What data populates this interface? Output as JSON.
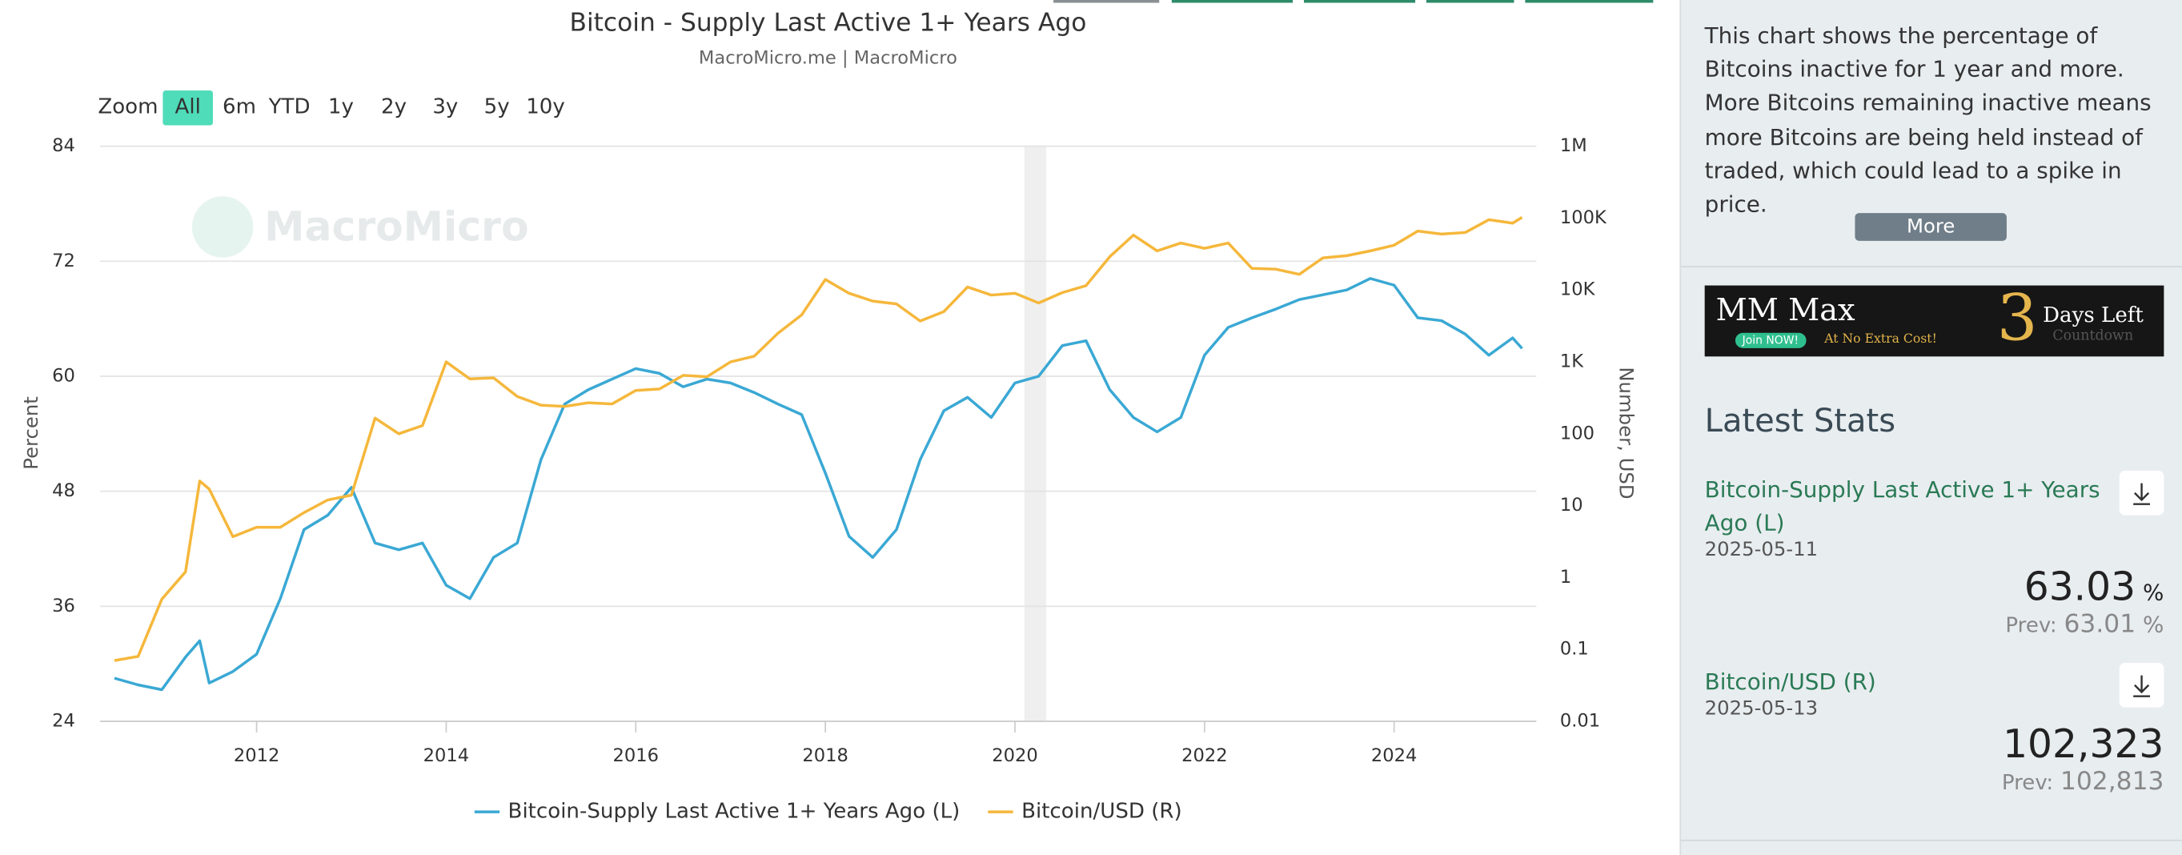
{
  "chart_data": {
    "type": "line",
    "title": "Bitcoin - Supply Last Active 1+ Years Ago",
    "subtitle": "MacroMicro.me | MacroMicro",
    "watermark": "MacroMicro",
    "y_label": "Percent",
    "y2_label": "Number, USD",
    "xlim": [
      2010.35,
      2025.5
    ],
    "xticks": [
      2012,
      2014,
      2016,
      2018,
      2020,
      2022,
      2024
    ],
    "ylim": [
      24,
      84
    ],
    "yticks": [
      24,
      36,
      48,
      60,
      72,
      84
    ],
    "y2lim": [
      0.01,
      1000000
    ],
    "y2_scale": "log",
    "y2ticks": [
      0.01,
      0.1,
      1,
      10,
      100,
      {
        "value": 1000,
        "label": "1K"
      },
      {
        "value": 10000,
        "label": "10K"
      },
      {
        "value": 100000,
        "label": "100K"
      },
      {
        "value": 1000000,
        "label": "1M"
      }
    ],
    "grid": true,
    "shaded_ranges": [
      [
        2020.1,
        2020.33
      ]
    ],
    "x": [
      2010.5,
      2010.75,
      2011.0,
      2011.25,
      2011.4,
      2011.5,
      2011.75,
      2012.0,
      2012.25,
      2012.5,
      2012.75,
      2013.0,
      2013.25,
      2013.5,
      2013.75,
      2014.0,
      2014.25,
      2014.5,
      2014.75,
      2015.0,
      2015.25,
      2015.5,
      2015.75,
      2016.0,
      2016.25,
      2016.5,
      2016.75,
      2017.0,
      2017.25,
      2017.5,
      2017.75,
      2018.0,
      2018.25,
      2018.5,
      2018.75,
      2019.0,
      2019.25,
      2019.5,
      2019.75,
      2020.0,
      2020.25,
      2020.5,
      2020.75,
      2021.0,
      2021.25,
      2021.5,
      2021.75,
      2022.0,
      2022.25,
      2022.5,
      2022.75,
      2023.0,
      2023.25,
      2023.5,
      2023.75,
      2024.0,
      2024.25,
      2024.5,
      2024.75,
      2025.0,
      2025.25,
      2025.35
    ],
    "series": [
      {
        "name": "Bitcoin-Supply Last Active 1+ Years Ago (L)",
        "color": "#3aa8d4",
        "axis": "y",
        "values": [
          28.5,
          27.8,
          27.3,
          30.7,
          32.4,
          28,
          29.2,
          31,
          36.8,
          44,
          45.5,
          48.4,
          42.6,
          41.9,
          42.6,
          38.2,
          36.8,
          41.1,
          42.6,
          51.3,
          57.1,
          58.6,
          59.7,
          60.8,
          60.3,
          58.9,
          59.7,
          59.3,
          58.3,
          57.1,
          56,
          49.9,
          43.3,
          41.1,
          44,
          51.3,
          56.4,
          57.8,
          55.7,
          59.3,
          60,
          63.2,
          63.7,
          58.6,
          55.7,
          54.2,
          55.7,
          62.2,
          65.1,
          66.1,
          67,
          68,
          68.5,
          69,
          70.2,
          69.5,
          66.1,
          65.8,
          64.4,
          62.2,
          64,
          62.9
        ]
      },
      {
        "name": "Bitcoin/USD (R)",
        "color": "#f5b73b",
        "axis": "y2",
        "values": [
          0.07,
          0.08,
          0.5,
          1.2,
          22,
          17,
          3.7,
          5,
          5,
          8,
          12,
          14,
          165,
          100,
          130,
          1000,
          580,
          600,
          330,
          250,
          240,
          270,
          260,
          400,
          420,
          650,
          620,
          1000,
          1200,
          2500,
          4500,
          14000,
          9000,
          7000,
          6400,
          3700,
          5000,
          11000,
          8500,
          9000,
          6600,
          9200,
          11500,
          29000,
          58000,
          35000,
          45000,
          38000,
          45000,
          20000,
          19500,
          16500,
          28000,
          30000,
          35000,
          42000,
          66000,
          60000,
          63000,
          95000,
          85000,
          102323
        ]
      }
    ]
  },
  "range_selector": {
    "label": "Zoom",
    "buttons": [
      "All",
      "6m",
      "YTD",
      "1y",
      "2y",
      "3y",
      "5y",
      "10y"
    ],
    "active": 0
  },
  "sidebar": {
    "description": "This chart shows the percentage of Bitcoins inactive for 1 year and more. More Bitcoins remaining inactive means more Bitcoins are being held instead of traded, which could lead to a spike in price.",
    "more_button": "More",
    "ad": {
      "brand": "MM Max",
      "cta": "Join NOW!",
      "tagline": "At No Extra Cost!",
      "count": "3",
      "days": "Days Left",
      "caption": "Countdown"
    },
    "stats_title": "Latest Stats",
    "stats": [
      {
        "name": "Bitcoin-Supply Last Active 1+ Years Ago (L)",
        "date": "2025-05-11",
        "value": "63.03",
        "unit": "%",
        "prev_label": "Prev:",
        "prev": "63.01",
        "prev_unit": "%"
      },
      {
        "name": "Bitcoin/USD (R)",
        "date": "2025-05-13",
        "value": "102,323",
        "prev_label": "Prev:",
        "prev": "102,813"
      }
    ]
  }
}
